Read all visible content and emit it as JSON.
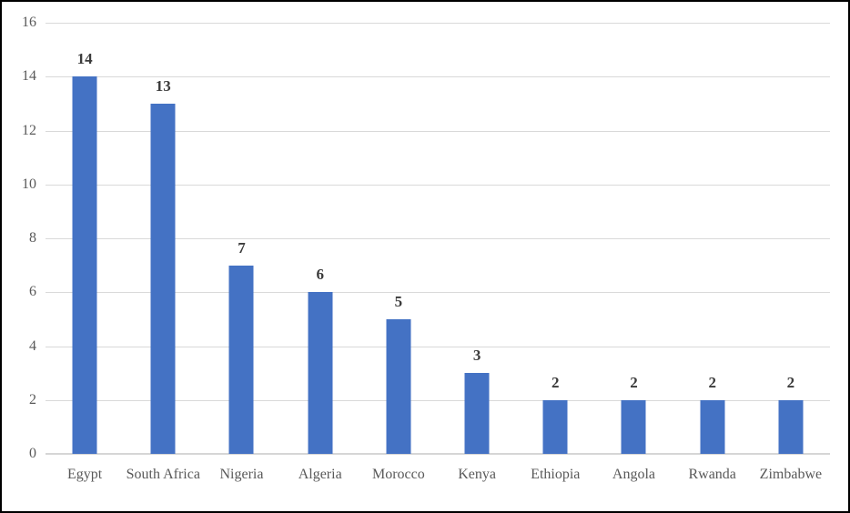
{
  "chart_data": {
    "type": "bar",
    "title": "",
    "xlabel": "",
    "ylabel": "",
    "categories": [
      "Egypt",
      "South Africa",
      "Nigeria",
      "Algeria",
      "Morocco",
      "Kenya",
      "Ethiopia",
      "Angola",
      "Rwanda",
      "Zimbabwe"
    ],
    "values": [
      14,
      13,
      7,
      6,
      5,
      3,
      2,
      2,
      2,
      2
    ],
    "data_labels": [
      "14",
      "13",
      "7",
      "6",
      "5",
      "3",
      "2",
      "2",
      "2",
      "2"
    ],
    "ylim": [
      0,
      16
    ],
    "yticks": [
      0,
      2,
      4,
      6,
      8,
      10,
      12,
      14,
      16
    ],
    "grid": true,
    "legend_position": "none",
    "colors": {
      "bar": "#4472C4",
      "gridline": "#D9D9D9",
      "axis_line": "#D6D6D6",
      "tick_label": "#595959",
      "data_label": "#3B3B3B",
      "background": "#FFFFFF",
      "frame_border": "#000000"
    }
  }
}
